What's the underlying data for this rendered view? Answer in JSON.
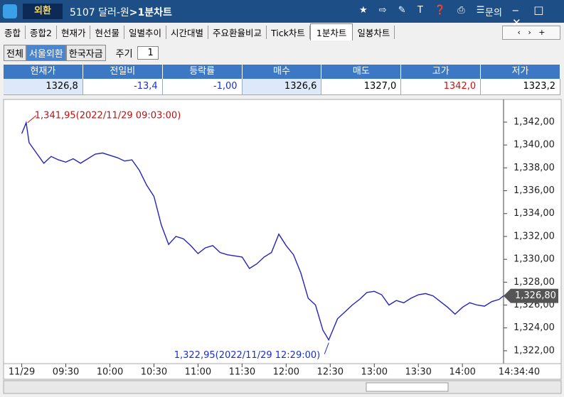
{
  "window": {
    "tab": "외환",
    "title_prefix": "5107 달러-원",
    "title_suffix": ">1분차트",
    "help": "문의"
  },
  "tabs": [
    "종합",
    "종합2",
    "현재가",
    "현선물",
    "일별추이",
    "시간대별",
    "주요환율비교",
    "Tick차트",
    "1분차트",
    "일봉차트"
  ],
  "active_tab": 8,
  "toolbar": {
    "markets": [
      "전체",
      "서울외환",
      "한국자금"
    ],
    "selected_market": 1,
    "period_label": "주기",
    "period": "1"
  },
  "quote": {
    "headers": [
      "현재가",
      "전일비",
      "등락률",
      "매수",
      "매도",
      "고가",
      "저가"
    ],
    "values": [
      "1326,8",
      "-13,4",
      "-1,00",
      "1326,6",
      "1327,0",
      "1342,0",
      "1323,2"
    ],
    "colors": [
      "#000000",
      "#1a2fd0",
      "#1a2fd0",
      "#000000",
      "#000000",
      "#d01010",
      "#000000"
    ]
  },
  "chart_data": {
    "type": "line",
    "color": "#2424b8",
    "x": [
      "09:00",
      "09:03",
      "09:05",
      "09:10",
      "09:15",
      "09:20",
      "09:25",
      "09:30",
      "09:35",
      "09:40",
      "09:45",
      "09:50",
      "09:55",
      "10:00",
      "10:05",
      "10:10",
      "10:15",
      "10:20",
      "10:25",
      "10:30",
      "10:35",
      "10:40",
      "10:45",
      "10:50",
      "10:55",
      "11:00",
      "11:05",
      "11:10",
      "11:15",
      "11:20",
      "11:25",
      "11:30",
      "11:35",
      "11:40",
      "11:45",
      "11:50",
      "11:55",
      "12:00",
      "12:05",
      "12:10",
      "12:15",
      "12:20",
      "12:25",
      "12:29",
      "12:35",
      "12:40",
      "12:45",
      "12:50",
      "12:55",
      "13:00",
      "13:05",
      "13:10",
      "13:15",
      "13:20",
      "13:25",
      "13:30",
      "13:35",
      "13:40",
      "13:45",
      "13:50",
      "13:55",
      "14:00",
      "14:05",
      "14:10",
      "14:15",
      "14:20",
      "14:25",
      "14:28"
    ],
    "values": [
      1341,
      1341.95,
      1340.2,
      1339.3,
      1338.4,
      1339,
      1338.7,
      1338.5,
      1338.8,
      1338.4,
      1338.8,
      1339.2,
      1339.3,
      1339.1,
      1338.9,
      1338.6,
      1338.7,
      1337.8,
      1336.5,
      1335.5,
      1333,
      1331.3,
      1332,
      1331.8,
      1331.2,
      1330.5,
      1331,
      1331.2,
      1330.6,
      1330.4,
      1330.3,
      1330.2,
      1329.2,
      1329.6,
      1330.2,
      1330.6,
      1332.2,
      1331.2,
      1330.4,
      1328.8,
      1326.6,
      1326,
      1323.8,
      1322.95,
      1324.8,
      1325.4,
      1326,
      1326.5,
      1327.1,
      1327.2,
      1326.9,
      1326,
      1326.4,
      1326.2,
      1326.6,
      1326.9,
      1327,
      1326.8,
      1326.3,
      1325.8,
      1325.2,
      1325.8,
      1326.2,
      1326,
      1325.9,
      1326.3,
      1326.5,
      1326.8
    ],
    "xlim": [
      "08:51",
      "14:28"
    ],
    "xticks": [
      {
        "value": "09:00",
        "label": "11/29"
      },
      "09:30",
      "10:00",
      "10:30",
      "11:00",
      "11:30",
      "12:00",
      "12:30",
      "13:00",
      "13:30",
      "14:00"
    ],
    "ylim": [
      1321,
      1343.8
    ],
    "yticks": [
      {
        "value": 1322,
        "label": "1,322,00"
      },
      {
        "value": 1324,
        "label": "1,324,00"
      },
      {
        "value": 1326,
        "label": "1,326,00"
      },
      {
        "value": 1328,
        "label": "1,328,00"
      },
      {
        "value": 1330,
        "label": "1,330,00"
      },
      {
        "value": 1332,
        "label": "1,332,00"
      },
      {
        "value": 1334,
        "label": "1,334,00"
      },
      {
        "value": 1336,
        "label": "1,336,00"
      },
      {
        "value": 1338,
        "label": "1,338,00"
      },
      {
        "value": 1340,
        "label": "1,340,00"
      },
      {
        "value": 1342,
        "label": "1,342,00"
      }
    ],
    "high_annotation": "1,341,95(2022/11/29 09:03:00)",
    "low_annotation": "1,322,95(2022/11/29 12:29:00)",
    "last_label": "1,326,80",
    "time_label": "14:34:40"
  }
}
